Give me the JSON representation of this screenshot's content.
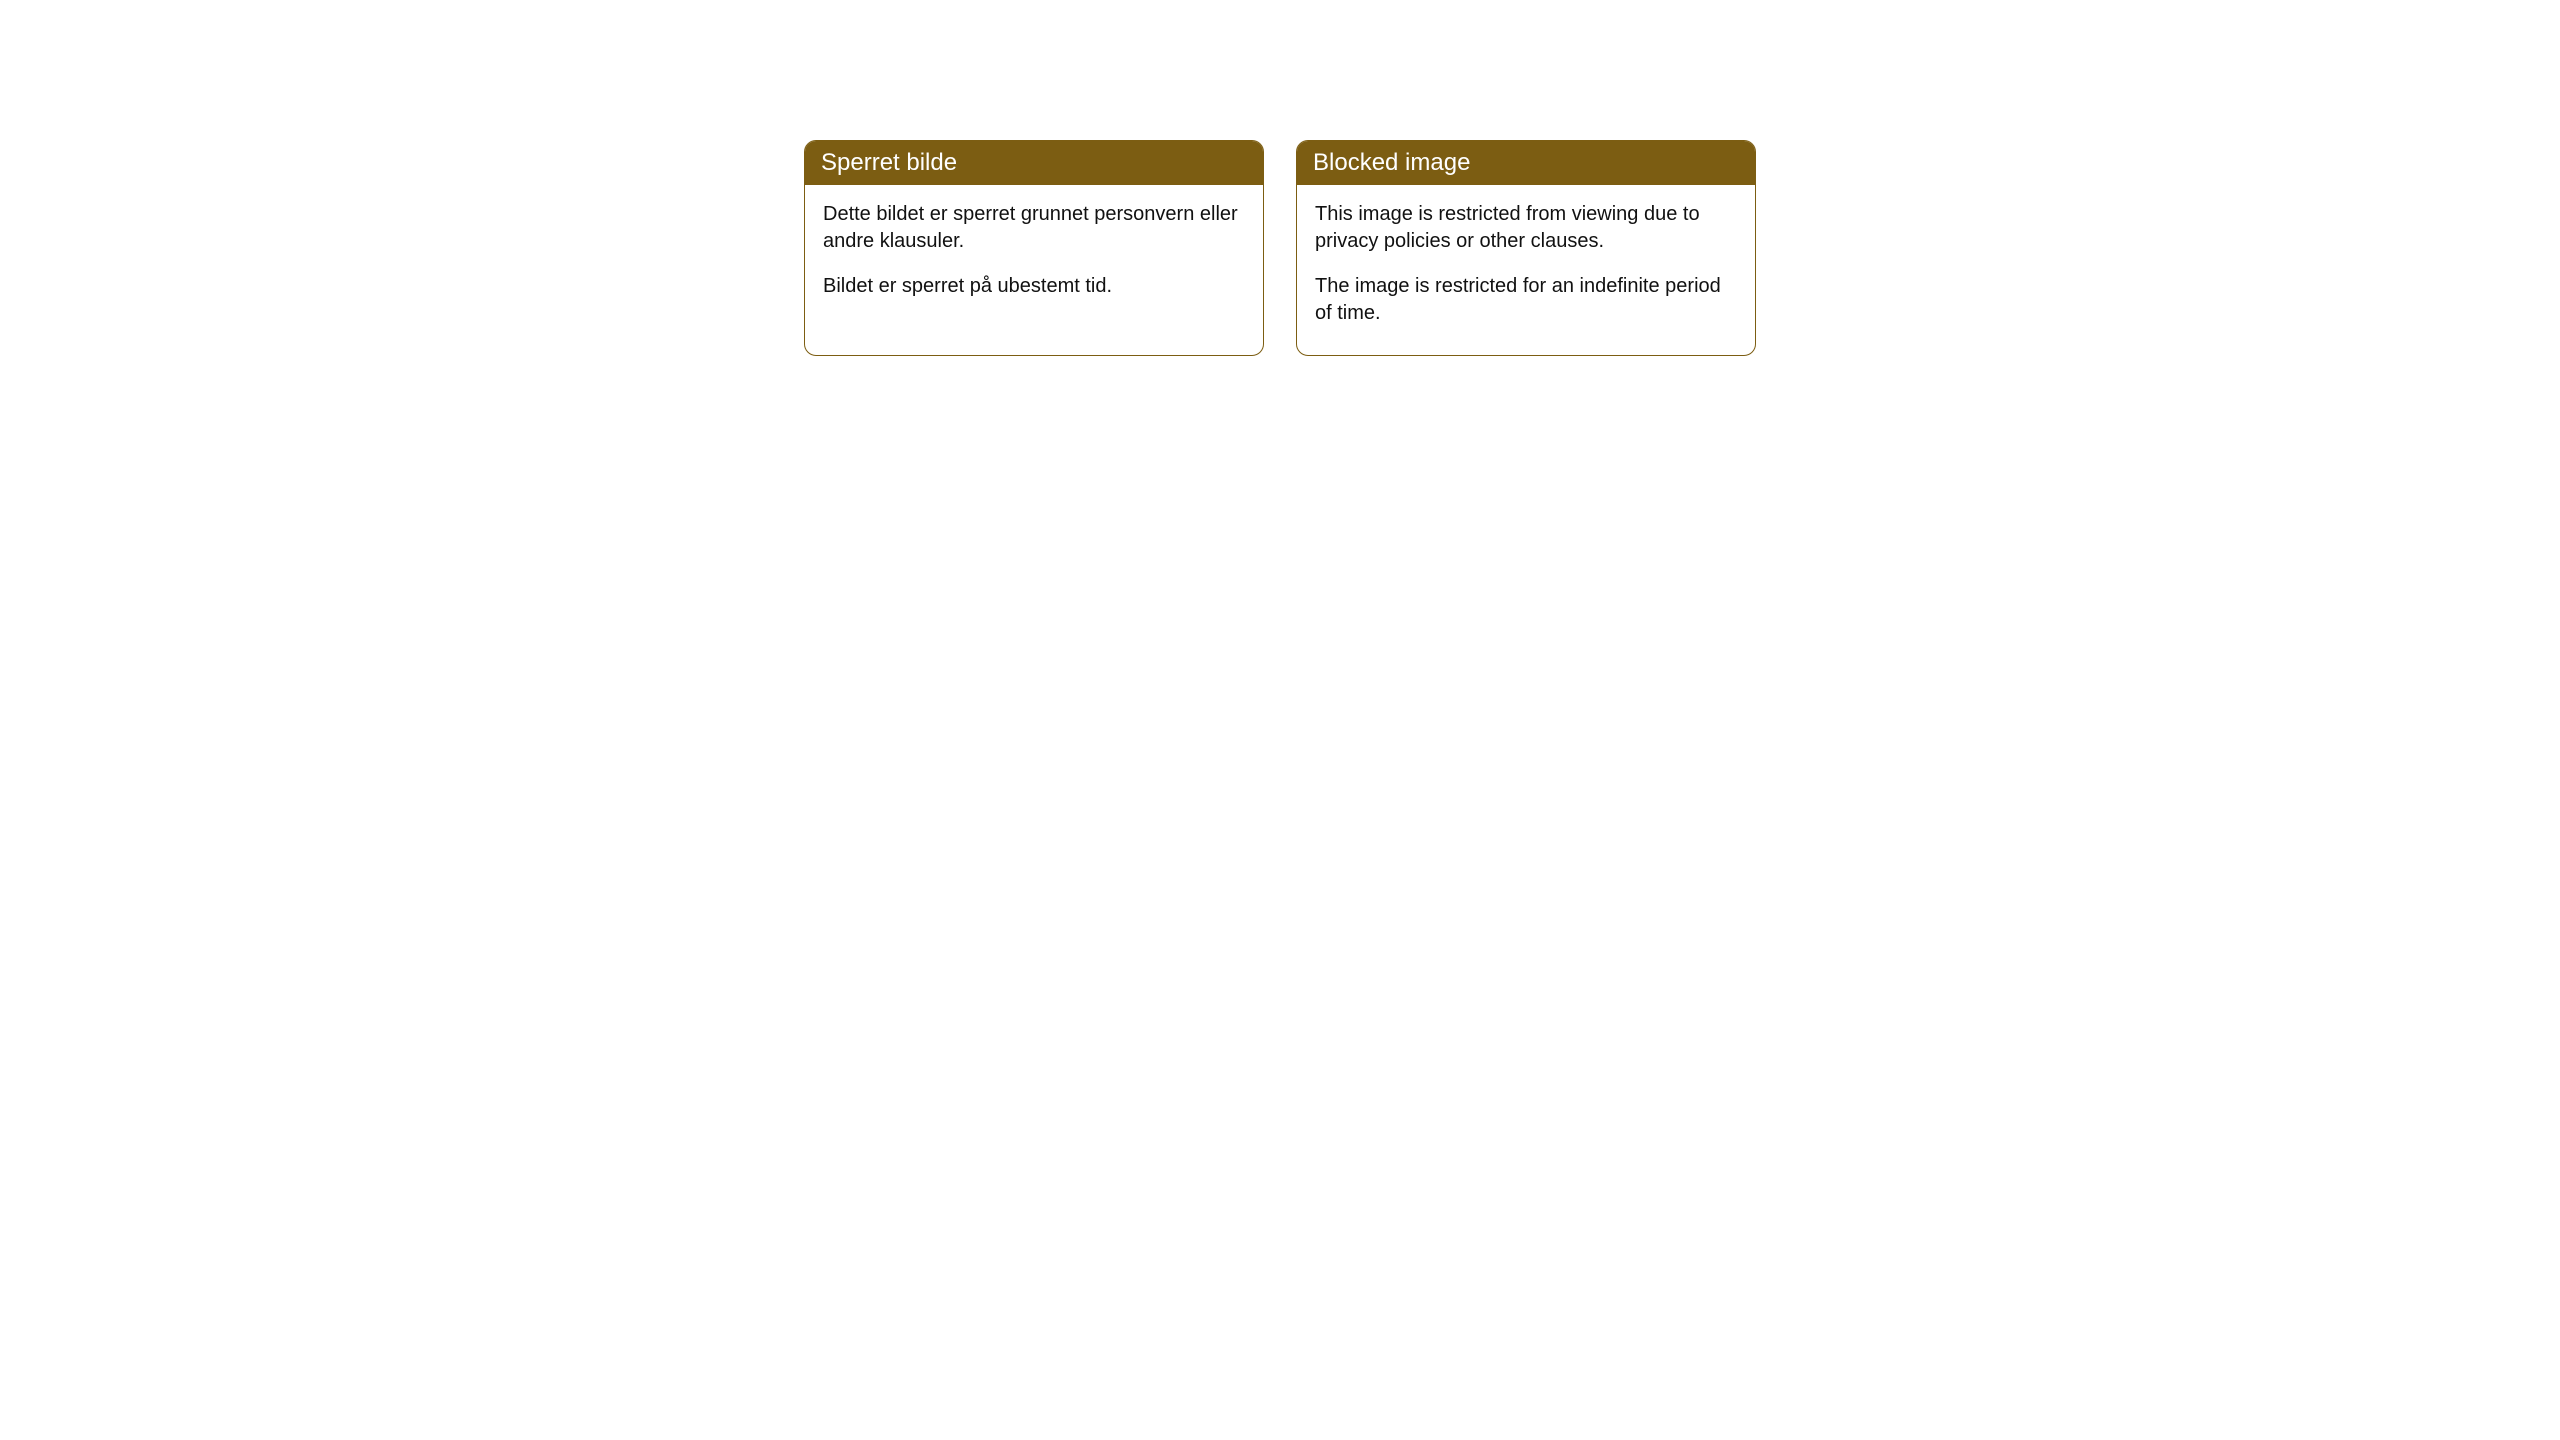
{
  "theme": {
    "header_bg": "#7c5d12",
    "header_text": "#ffffff",
    "border_color": "#7c5d12",
    "body_bg": "#ffffff",
    "body_text": "#111111",
    "border_radius": 12,
    "header_fontsize": 24,
    "body_fontsize": 20
  },
  "cards": [
    {
      "title": "Sperret bilde",
      "paragraphs": [
        "Dette bildet er sperret grunnet personvern eller andre klausuler.",
        "Bildet er sperret på ubestemt tid."
      ]
    },
    {
      "title": "Blocked image",
      "paragraphs": [
        "This image is restricted from viewing due to privacy policies or other clauses.",
        "The image is restricted for an indefinite period of time."
      ]
    }
  ]
}
